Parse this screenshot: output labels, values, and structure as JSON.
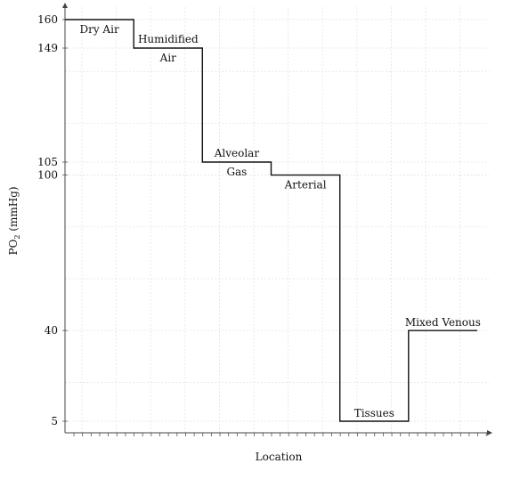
{
  "chart_data": {
    "type": "line",
    "xlabel": "Location",
    "ylabel": "PO",
    "ylabel_sub": "2",
    "ylabel_unit": " (mmHg)",
    "ylim": [
      0,
      165
    ],
    "yticks": [
      160,
      149,
      105,
      100,
      40,
      5
    ],
    "grid": true,
    "steps": [
      {
        "label_lines": [
          "Dry Air"
        ],
        "value": 160,
        "label_position": "below"
      },
      {
        "label_lines": [
          "Humidified",
          "Air"
        ],
        "value": 149,
        "label_position": "split"
      },
      {
        "label_lines": [
          "Alveolar",
          "Gas"
        ],
        "value": 105,
        "label_position": "split"
      },
      {
        "label_lines": [
          "Arterial"
        ],
        "value": 100,
        "label_position": "below"
      },
      {
        "label_lines": [
          "Tissues"
        ],
        "value": 5,
        "label_position": "above"
      },
      {
        "label_lines": [
          "Mixed Venous"
        ],
        "value": 40,
        "label_position": "above"
      }
    ]
  }
}
